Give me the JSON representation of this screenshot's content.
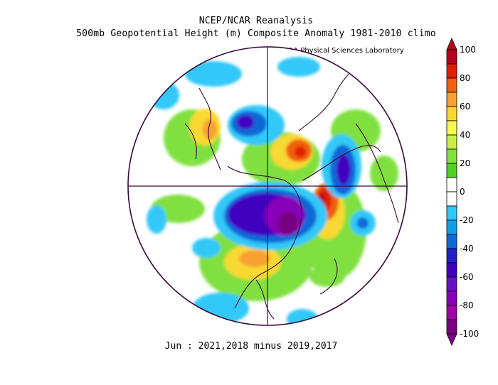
{
  "figure": {
    "title_line1": "NCEP/NCAR Reanalysis",
    "title_line2": "500mb Geopotential Height (m) Composite Anomaly 1981-2010 climo",
    "credit": "NOAA Physical Sciences Laboratory",
    "footer": "Jun : 2021,2018 minus 2019,2017"
  },
  "colorbar": {
    "labels": [
      "100",
      "80",
      "60",
      "40",
      "20",
      "0",
      "-20",
      "-40",
      "-60",
      "-80",
      "-100"
    ],
    "colors": [
      "#b8001a",
      "#e02000",
      "#f06010",
      "#f8a030",
      "#f8d830",
      "#f8f850",
      "#c8f048",
      "#80e040",
      "#50d020",
      "#ffffff",
      "#ffffff",
      "#30c8f8",
      "#10a0e8",
      "#1068d8",
      "#2020c8",
      "#4000c0",
      "#6810c8",
      "#8800b8",
      "#a000a8",
      "#780080"
    ]
  }
}
